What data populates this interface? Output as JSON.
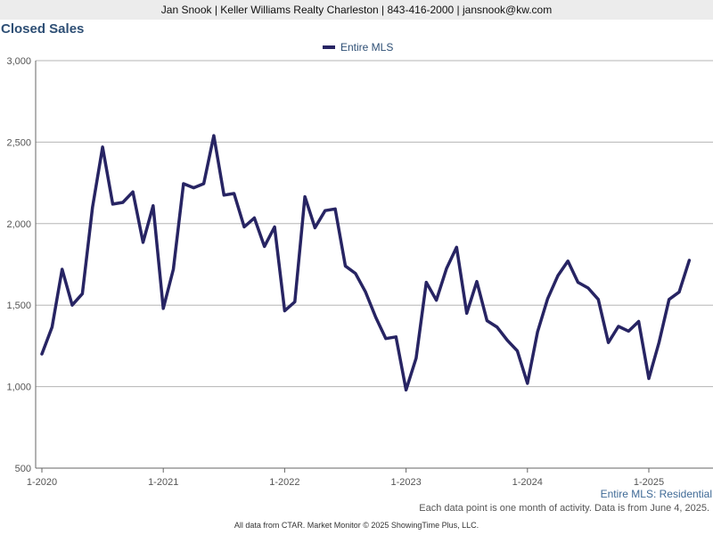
{
  "header": {
    "contact_line": "Jan Snook | Keller Williams Realty Charleston | 843-416-2000 | jansnook@kw.com"
  },
  "colors": {
    "line": "#272463",
    "title": "#2e4f75",
    "grid": "#b5b5b5"
  },
  "chart_data": {
    "type": "line",
    "title": "Closed Sales",
    "xlabel": "",
    "ylabel": "",
    "ylim": [
      500,
      3000
    ],
    "yticks": [
      500,
      1000,
      1500,
      2000,
      2500,
      3000
    ],
    "ytick_labels": [
      "500",
      "1,000",
      "1,500",
      "2,000",
      "2,500",
      "3,000"
    ],
    "xtick_labels": [
      "1-2020",
      "1-2021",
      "1-2022",
      "1-2023",
      "1-2024",
      "1-2025"
    ],
    "grid": "horizontal",
    "legend_position": "top-center",
    "series": [
      {
        "name": "Entire MLS",
        "x": [
          "2020-01",
          "2020-02",
          "2020-03",
          "2020-04",
          "2020-05",
          "2020-06",
          "2020-07",
          "2020-08",
          "2020-09",
          "2020-10",
          "2020-11",
          "2020-12",
          "2021-01",
          "2021-02",
          "2021-03",
          "2021-04",
          "2021-05",
          "2021-06",
          "2021-07",
          "2021-08",
          "2021-09",
          "2021-10",
          "2021-11",
          "2021-12",
          "2022-01",
          "2022-02",
          "2022-03",
          "2022-04",
          "2022-05",
          "2022-06",
          "2022-07",
          "2022-08",
          "2022-09",
          "2022-10",
          "2022-11",
          "2022-12",
          "2023-01",
          "2023-02",
          "2023-03",
          "2023-04",
          "2023-05",
          "2023-06",
          "2023-07",
          "2023-08",
          "2023-09",
          "2023-10",
          "2023-11",
          "2023-12",
          "2024-01",
          "2024-02",
          "2024-03",
          "2024-04",
          "2024-05",
          "2024-06",
          "2024-07",
          "2024-08",
          "2024-09",
          "2024-10",
          "2024-11",
          "2024-12",
          "2025-01",
          "2025-02",
          "2025-03",
          "2025-04",
          "2025-05"
        ],
        "values": [
          1200,
          1365,
          1720,
          1500,
          1570,
          2100,
          2470,
          2120,
          2130,
          2195,
          1885,
          2110,
          1480,
          1720,
          2245,
          2220,
          2245,
          2540,
          2175,
          2185,
          1980,
          2035,
          1860,
          1980,
          1465,
          1520,
          2165,
          1975,
          2080,
          2090,
          1740,
          1695,
          1580,
          1425,
          1295,
          1305,
          980,
          1175,
          1640,
          1530,
          1725,
          1855,
          1450,
          1645,
          1405,
          1365,
          1285,
          1220,
          1020,
          1335,
          1540,
          1680,
          1770,
          1640,
          1605,
          1535,
          1270,
          1370,
          1340,
          1400,
          1050,
          1270,
          1535,
          1580,
          1775
        ]
      }
    ]
  },
  "footnotes": {
    "series_label": "Entire MLS: Residential",
    "note": "Each data point is one month of activity. Data is from June 4, 2025.",
    "source": "All data from CTAR. Market Monitor © 2025 ShowingTime Plus, LLC."
  }
}
